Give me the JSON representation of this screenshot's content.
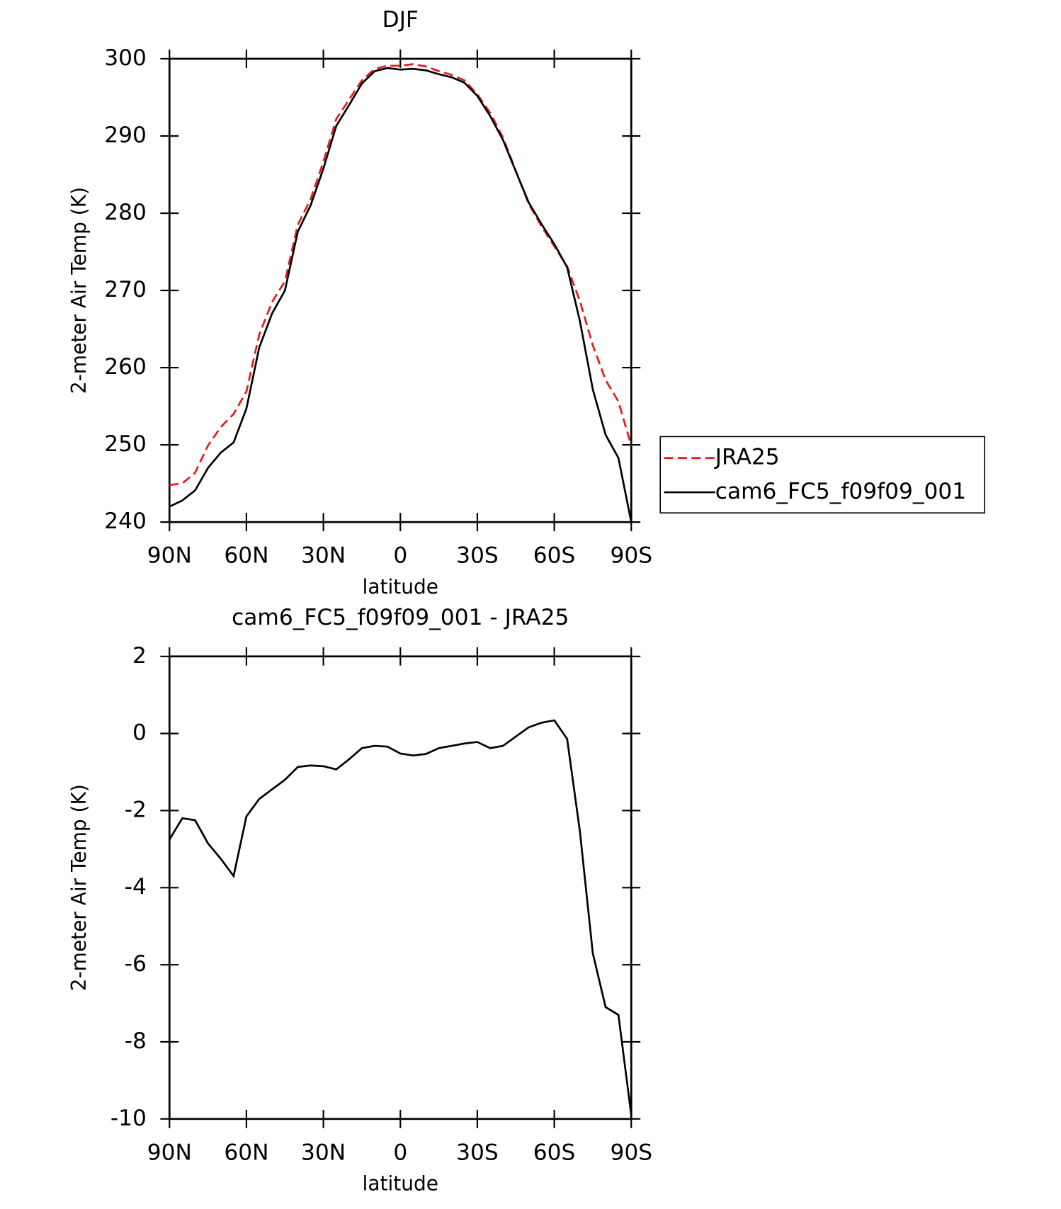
{
  "chart_data": [
    {
      "type": "line",
      "title": "DJF",
      "xlabel": "latitude",
      "ylabel": "2-meter Air Temp (K)",
      "xlim": [
        90,
        -90
      ],
      "ylim": [
        240,
        300
      ],
      "xticks": [
        {
          "value": 90,
          "label": "90N"
        },
        {
          "value": 60,
          "label": "60N"
        },
        {
          "value": 30,
          "label": "30N"
        },
        0,
        {
          "value": -30,
          "label": "30S"
        },
        {
          "value": -60,
          "label": "60S"
        },
        {
          "value": -90,
          "label": "90S"
        }
      ],
      "yticks": [
        240,
        250,
        260,
        270,
        280,
        290,
        300
      ],
      "legend": "right",
      "x": [
        90,
        85,
        80,
        75,
        70,
        65,
        60,
        55,
        50,
        45,
        40,
        35,
        30,
        25,
        20,
        15,
        10,
        5,
        0,
        -5,
        -10,
        -15,
        -20,
        -25,
        -30,
        -35,
        -40,
        -45,
        -50,
        -55,
        -60,
        -65,
        -70,
        -75,
        -80,
        -85,
        -90
      ],
      "series": [
        {
          "name": "JRA25",
          "color": "#e41a1c",
          "linestyle": "dashed",
          "values": [
            244.8,
            245.0,
            246.4,
            249.9,
            252.3,
            254.0,
            256.9,
            264.3,
            268.5,
            271.2,
            278.5,
            281.8,
            286.7,
            292.2,
            294.7,
            297.2,
            298.7,
            299.1,
            299.1,
            299.3,
            299.0,
            298.4,
            297.9,
            297.2,
            295.4,
            293.0,
            289.8,
            285.5,
            281.2,
            278.3,
            275.7,
            273.1,
            268.6,
            262.9,
            258.4,
            255.6,
            249.9
          ]
        },
        {
          "name": "cam6_FC5_f09f09_001",
          "color": "#000000",
          "linestyle": "solid",
          "values": [
            242.0,
            242.8,
            244.1,
            247.0,
            249.0,
            250.3,
            254.7,
            262.6,
            267.0,
            270.0,
            277.6,
            281.0,
            285.8,
            291.3,
            294.0,
            296.8,
            298.4,
            298.8,
            298.6,
            298.7,
            298.5,
            298.0,
            297.6,
            296.9,
            295.2,
            292.6,
            289.5,
            285.4,
            281.4,
            278.6,
            276.0,
            273.0,
            266.0,
            257.2,
            251.3,
            248.3,
            240.0
          ]
        }
      ]
    },
    {
      "type": "line",
      "title": "cam6_FC5_f09f09_001 - JRA25",
      "xlabel": "latitude",
      "ylabel": "2-meter Air Temp (K)",
      "xlim": [
        90,
        -90
      ],
      "ylim": [
        -10,
        2
      ],
      "xticks": [
        {
          "value": 90,
          "label": "90N"
        },
        {
          "value": 60,
          "label": "60N"
        },
        {
          "value": 30,
          "label": "30N"
        },
        0,
        {
          "value": -30,
          "label": "30S"
        },
        {
          "value": -60,
          "label": "60S"
        },
        {
          "value": -90,
          "label": "90S"
        }
      ],
      "yticks": [
        -10,
        -8,
        -6,
        -4,
        -2,
        0,
        2
      ],
      "x": [
        90,
        85,
        80,
        75,
        70,
        65,
        60,
        55,
        50,
        45,
        40,
        35,
        30,
        25,
        20,
        15,
        10,
        5,
        0,
        -5,
        -10,
        -15,
        -20,
        -25,
        -30,
        -35,
        -40,
        -45,
        -50,
        -55,
        -60,
        -65,
        -70,
        -75,
        -80,
        -85,
        -90
      ],
      "series": [
        {
          "color": "#000000",
          "linestyle": "solid",
          "values": [
            -2.75,
            -2.2,
            -2.25,
            -2.85,
            -3.25,
            -3.7,
            -2.15,
            -1.7,
            -1.45,
            -1.2,
            -0.87,
            -0.83,
            -0.85,
            -0.93,
            -0.67,
            -0.38,
            -0.32,
            -0.34,
            -0.52,
            -0.57,
            -0.53,
            -0.38,
            -0.32,
            -0.26,
            -0.22,
            -0.38,
            -0.32,
            -0.08,
            0.16,
            0.28,
            0.34,
            -0.14,
            -2.55,
            -5.7,
            -7.1,
            -7.3,
            -9.9
          ]
        }
      ]
    }
  ]
}
